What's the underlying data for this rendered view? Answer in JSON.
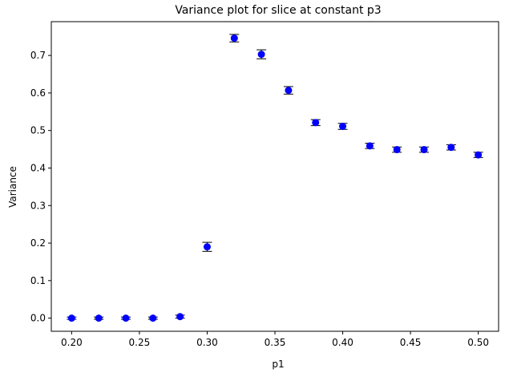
{
  "chart_data": {
    "type": "scatter",
    "title": "Variance plot for slice at constant p3",
    "xlabel": "p1",
    "ylabel": "Variance",
    "xlim": [
      0.185,
      0.515
    ],
    "ylim": [
      -0.035,
      0.79
    ],
    "xticks": [
      "0.20",
      "0.25",
      "0.30",
      "0.35",
      "0.40",
      "0.45",
      "0.50"
    ],
    "yticks": [
      "0.0",
      "0.1",
      "0.2",
      "0.3",
      "0.4",
      "0.5",
      "0.6",
      "0.7"
    ],
    "grid": false,
    "marker_color": "#0000ff",
    "errorbar_color": "#000000",
    "points": [
      {
        "x": 0.2,
        "y": 0.0,
        "err": 0.003
      },
      {
        "x": 0.22,
        "y": 0.0,
        "err": 0.003
      },
      {
        "x": 0.24,
        "y": 0.0,
        "err": 0.003
      },
      {
        "x": 0.26,
        "y": 0.0,
        "err": 0.003
      },
      {
        "x": 0.28,
        "y": 0.004,
        "err": 0.004
      },
      {
        "x": 0.3,
        "y": 0.19,
        "err": 0.012
      },
      {
        "x": 0.32,
        "y": 0.746,
        "err": 0.01
      },
      {
        "x": 0.34,
        "y": 0.703,
        "err": 0.012
      },
      {
        "x": 0.36,
        "y": 0.607,
        "err": 0.01
      },
      {
        "x": 0.38,
        "y": 0.521,
        "err": 0.008
      },
      {
        "x": 0.4,
        "y": 0.511,
        "err": 0.008
      },
      {
        "x": 0.42,
        "y": 0.459,
        "err": 0.007
      },
      {
        "x": 0.44,
        "y": 0.449,
        "err": 0.007
      },
      {
        "x": 0.46,
        "y": 0.449,
        "err": 0.007
      },
      {
        "x": 0.48,
        "y": 0.455,
        "err": 0.007
      },
      {
        "x": 0.5,
        "y": 0.435,
        "err": 0.007
      }
    ]
  }
}
